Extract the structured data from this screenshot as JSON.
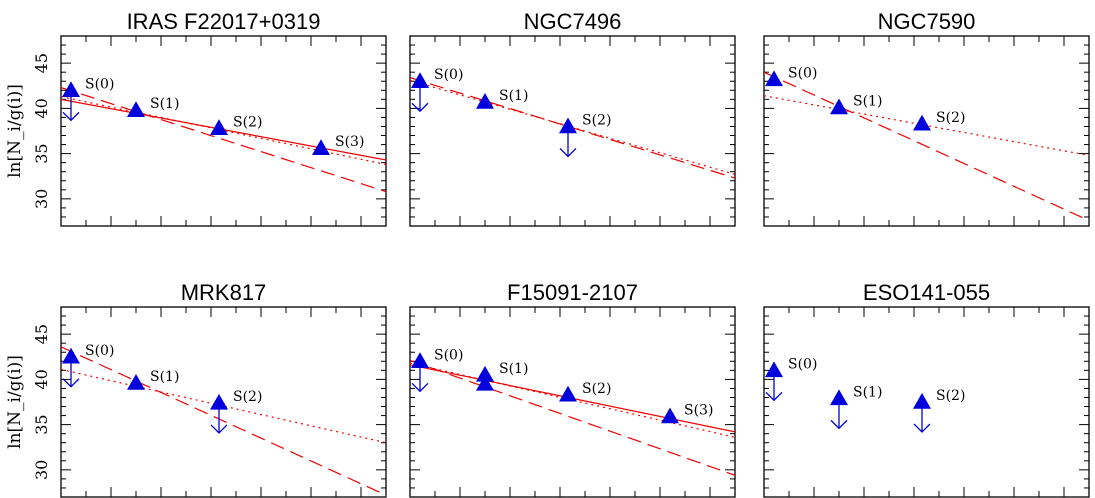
{
  "figure": {
    "ylabel": "ln[N_i/g(i)]",
    "colors": {
      "marker": "#0000dd",
      "fit": "#ee0000",
      "axis": "#000000"
    }
  },
  "chart_data": [
    {
      "type": "scatter",
      "title": "IRAS F22017+0319",
      "ylabel": "ln[N_i/g(i)]",
      "ylim": [
        27,
        48
      ],
      "yticks": [
        30,
        35,
        40,
        45
      ],
      "points": [
        {
          "label": "S(0)",
          "y": 42.0,
          "upper_limit": true
        },
        {
          "label": "S(1)",
          "y": 39.8,
          "upper_limit": false
        },
        {
          "label": "S(2)",
          "y": 37.8,
          "upper_limit": false
        },
        {
          "label": "S(3)",
          "y": 35.6,
          "upper_limit": false
        }
      ],
      "lines": [
        {
          "style": "solid",
          "y": [
            41.0,
            34.3
          ]
        },
        {
          "style": "dashed",
          "y": [
            42.3,
            30.8
          ]
        },
        {
          "style": "dotted",
          "y": [
            41.3,
            33.8
          ]
        }
      ]
    },
    {
      "type": "scatter",
      "title": "NGC7496",
      "ylim": [
        27,
        48
      ],
      "yticks": [
        30,
        35,
        40,
        45
      ],
      "points": [
        {
          "label": "S(0)",
          "y": 43.0,
          "upper_limit": true
        },
        {
          "label": "S(1)",
          "y": 40.7,
          "upper_limit": false
        },
        {
          "label": "S(2)",
          "y": 38.0,
          "upper_limit": true
        }
      ],
      "lines": [
        {
          "style": "dashed",
          "y": [
            43.4,
            32.3
          ]
        },
        {
          "style": "dotted",
          "y": [
            43.1,
            32.7
          ]
        }
      ]
    },
    {
      "type": "scatter",
      "title": "NGC7590",
      "ylim": [
        27,
        48
      ],
      "yticks": [
        30,
        35,
        40,
        45
      ],
      "points": [
        {
          "label": "S(0)",
          "y": 43.2,
          "upper_limit": false
        },
        {
          "label": "S(1)",
          "y": 40.1,
          "upper_limit": false
        },
        {
          "label": "S(2)",
          "y": 38.3,
          "upper_limit": false
        }
      ],
      "lines": [
        {
          "style": "dashed",
          "y": [
            44.0,
            27.6
          ]
        },
        {
          "style": "dotted",
          "y": [
            41.4,
            34.8
          ]
        }
      ]
    },
    {
      "type": "scatter",
      "title": "MRK817",
      "ylabel": "ln[N_i/g(i)]",
      "ylim": [
        27,
        48
      ],
      "yticks": [
        30,
        35,
        40,
        45
      ],
      "points": [
        {
          "label": "S(0)",
          "y": 42.5,
          "upper_limit": true
        },
        {
          "label": "S(1)",
          "y": 39.6,
          "upper_limit": false
        },
        {
          "label": "S(2)",
          "y": 37.4,
          "upper_limit": true
        }
      ],
      "lines": [
        {
          "style": "dashed",
          "y": [
            43.6,
            27.2
          ]
        },
        {
          "style": "dotted",
          "y": [
            41.1,
            33.0
          ]
        }
      ]
    },
    {
      "type": "scatter",
      "title": "F15091-2107",
      "ylim": [
        27,
        48
      ],
      "yticks": [
        30,
        35,
        40,
        45
      ],
      "points": [
        {
          "label": "S(0)",
          "y": 42.0,
          "upper_limit": true
        },
        {
          "label": "S(1)",
          "y": 40.5,
          "upper_limit": false
        },
        {
          "label": "S(1)",
          "y": 39.5,
          "upper_limit": false,
          "hide_label": true
        },
        {
          "label": "S(2)",
          "y": 38.3,
          "upper_limit": false
        },
        {
          "label": "S(3)",
          "y": 35.9,
          "upper_limit": false
        }
      ],
      "lines": [
        {
          "style": "solid",
          "y": [
            41.6,
            34.2
          ]
        },
        {
          "style": "dashed",
          "y": [
            42.1,
            29.4
          ]
        },
        {
          "style": "dotted",
          "y": [
            41.8,
            33.6
          ]
        }
      ]
    },
    {
      "type": "scatter",
      "title": "ESO141-055",
      "ylim": [
        27,
        48
      ],
      "yticks": [
        30,
        35,
        40,
        45
      ],
      "points": [
        {
          "label": "S(0)",
          "y": 41.0,
          "upper_limit": true
        },
        {
          "label": "S(1)",
          "y": 37.9,
          "upper_limit": true
        },
        {
          "label": "S(2)",
          "y": 37.5,
          "upper_limit": true
        }
      ],
      "lines": []
    }
  ]
}
